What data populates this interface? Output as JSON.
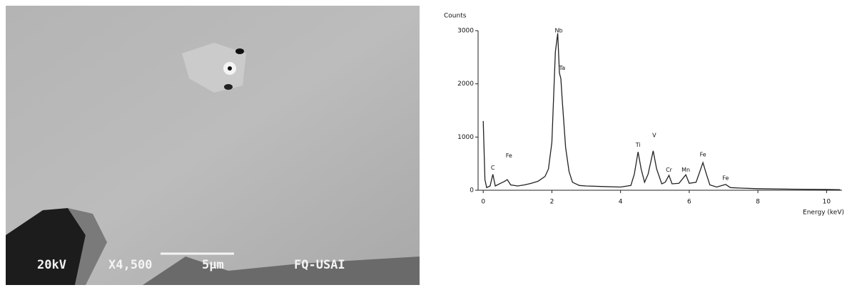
{
  "micrograph": {
    "voltage": "20kV",
    "magnification": "X4,500",
    "scale": "5μm",
    "lab": "FQ-USAI"
  },
  "chart_data": {
    "type": "line",
    "x_label": "Energy (keV)",
    "y_label": "Counts",
    "xlim": [
      -0.15,
      10.45
    ],
    "xticks": [
      0,
      2,
      4,
      6,
      8,
      10
    ],
    "ylim": [
      0,
      3000
    ],
    "yticks": [
      0,
      1000,
      2000,
      3000
    ],
    "series": [
      {
        "color": "#222222",
        "x": [
          0.0,
          0.05,
          0.1,
          0.2,
          0.28,
          0.35,
          0.5,
          0.6,
          0.7,
          0.8,
          1.0,
          1.2,
          1.4,
          1.6,
          1.8,
          1.9,
          2.0,
          2.1,
          2.17,
          2.22,
          2.26,
          2.3,
          2.4,
          2.5,
          2.6,
          2.8,
          3.0,
          3.5,
          4.0,
          4.3,
          4.4,
          4.51,
          4.6,
          4.7,
          4.8,
          4.95,
          5.05,
          5.2,
          5.3,
          5.41,
          5.5,
          5.7,
          5.9,
          6.0,
          6.2,
          6.4,
          6.5,
          6.6,
          6.8,
          7.06,
          7.2,
          7.5,
          8.0,
          9.0,
          10.0,
          10.4
        ],
        "values": [
          1300,
          200,
          50,
          80,
          300,
          80,
          130,
          160,
          200,
          100,
          80,
          100,
          130,
          170,
          260,
          400,
          900,
          2600,
          2950,
          2200,
          2100,
          1700,
          800,
          350,
          150,
          90,
          80,
          70,
          60,
          90,
          300,
          720,
          400,
          150,
          300,
          740,
          400,
          120,
          150,
          280,
          120,
          130,
          290,
          130,
          150,
          520,
          300,
          100,
          60,
          110,
          50,
          40,
          30,
          20,
          15,
          10
        ]
      }
    ],
    "annotations": [
      {
        "text": "C",
        "x": 0.28,
        "y": 420
      },
      {
        "text": "Fe",
        "x": 0.75,
        "y": 650
      },
      {
        "text": "Nb",
        "x": 2.2,
        "y": 3000
      },
      {
        "text": "Ta",
        "x": 2.3,
        "y": 2300
      },
      {
        "text": "Ti",
        "x": 4.51,
        "y": 850
      },
      {
        "text": "V",
        "x": 4.98,
        "y": 1030
      },
      {
        "text": "Cr",
        "x": 5.41,
        "y": 380
      },
      {
        "text": "Mn",
        "x": 5.9,
        "y": 380
      },
      {
        "text": "Fe",
        "x": 6.4,
        "y": 670
      },
      {
        "text": "Fe",
        "x": 7.06,
        "y": 230
      }
    ]
  }
}
